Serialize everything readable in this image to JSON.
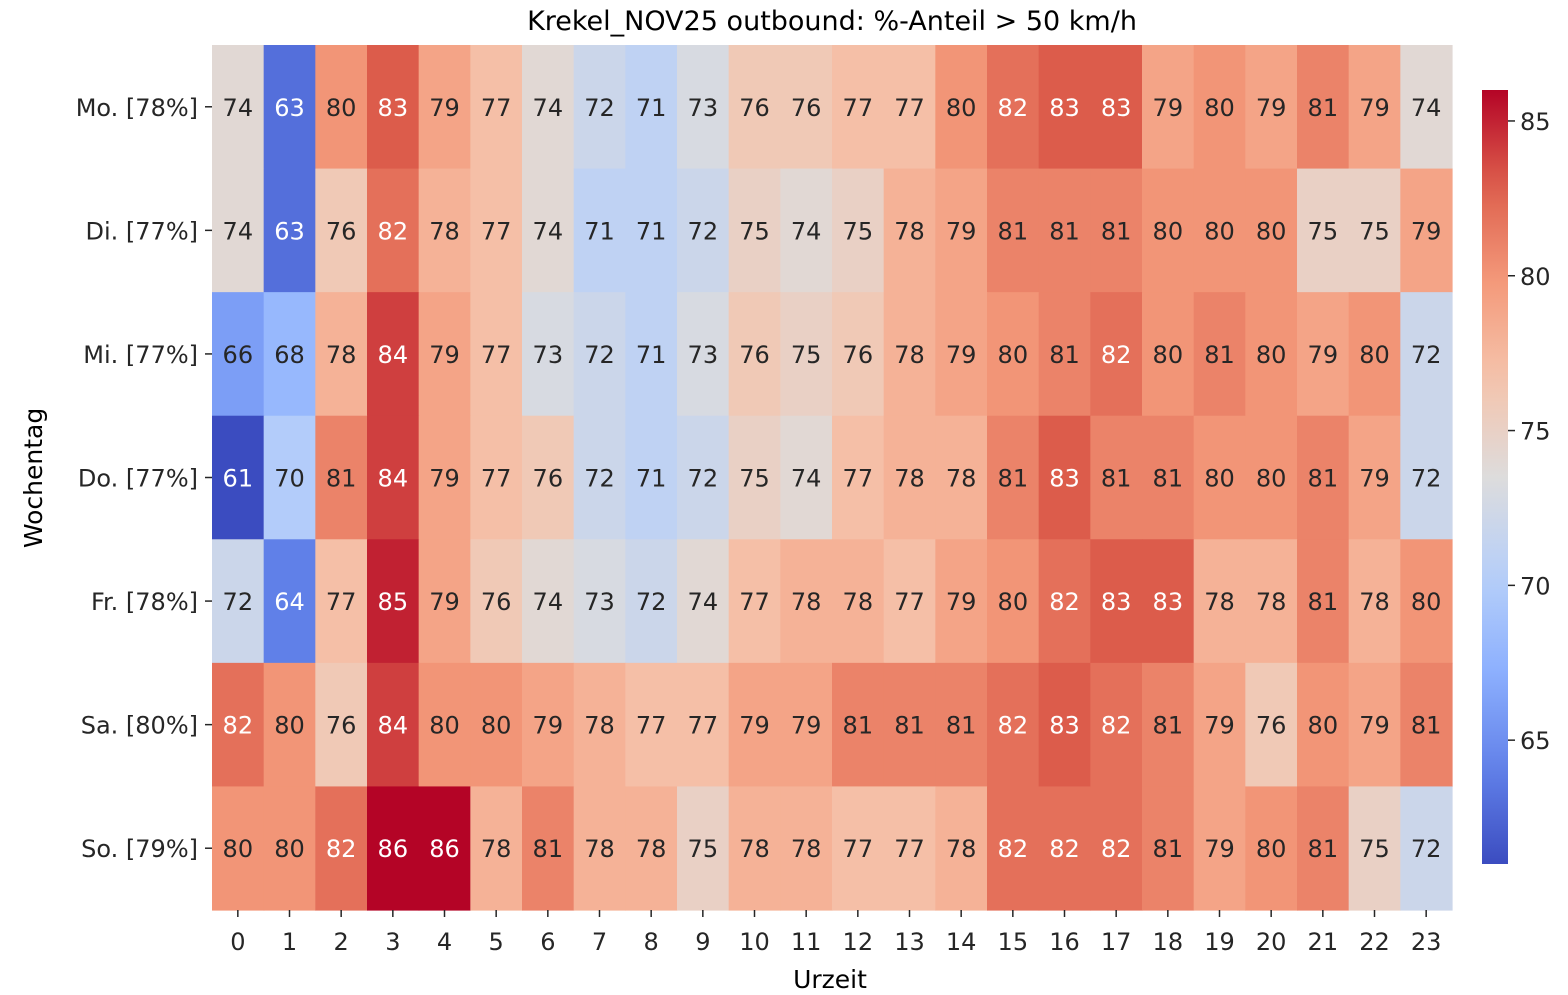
{
  "chart_data": {
    "type": "heatmap",
    "title": "Krekel_NOV25 outbound: %-Anteil > 50 km/h",
    "xlabel": "Urzeit",
    "ylabel": "Wochentag",
    "x_categories": [
      "0",
      "1",
      "2",
      "3",
      "4",
      "5",
      "6",
      "7",
      "8",
      "9",
      "10",
      "11",
      "12",
      "13",
      "14",
      "15",
      "16",
      "17",
      "18",
      "19",
      "20",
      "21",
      "22",
      "23"
    ],
    "y_categories": [
      "Mo. [78%]",
      "Di. [77%]",
      "Mi. [77%]",
      "Do. [77%]",
      "Fr. [78%]",
      "Sa. [80%]",
      "So. [79%]"
    ],
    "values": [
      [
        74,
        63,
        80,
        83,
        79,
        77,
        74,
        72,
        71,
        73,
        76,
        76,
        77,
        77,
        80,
        82,
        83,
        83,
        79,
        80,
        79,
        81,
        79,
        74
      ],
      [
        74,
        63,
        76,
        82,
        78,
        77,
        74,
        71,
        71,
        72,
        75,
        74,
        75,
        78,
        79,
        81,
        81,
        81,
        80,
        80,
        80,
        75,
        75,
        79
      ],
      [
        66,
        68,
        78,
        84,
        79,
        77,
        73,
        72,
        71,
        73,
        76,
        75,
        76,
        78,
        79,
        80,
        81,
        82,
        80,
        81,
        80,
        79,
        80,
        72
      ],
      [
        61,
        70,
        81,
        84,
        79,
        77,
        76,
        72,
        71,
        72,
        75,
        74,
        77,
        78,
        78,
        81,
        83,
        81,
        81,
        80,
        80,
        81,
        79,
        72
      ],
      [
        72,
        64,
        77,
        85,
        79,
        76,
        74,
        73,
        72,
        74,
        77,
        78,
        78,
        77,
        79,
        80,
        82,
        83,
        83,
        78,
        78,
        81,
        78,
        80
      ],
      [
        82,
        80,
        76,
        84,
        80,
        80,
        79,
        78,
        77,
        77,
        79,
        79,
        81,
        81,
        81,
        82,
        83,
        82,
        81,
        79,
        76,
        80,
        79,
        81
      ],
      [
        80,
        80,
        82,
        86,
        86,
        78,
        81,
        78,
        78,
        75,
        78,
        78,
        77,
        77,
        78,
        82,
        82,
        82,
        81,
        79,
        80,
        81,
        75,
        72
      ]
    ],
    "colormap": "coolwarm",
    "vmin": 61,
    "vmax": 86,
    "colorbar_ticks": [
      65,
      70,
      75,
      80,
      85
    ],
    "colors": {
      "low": "#3b4cc0",
      "mid": "#dddcdc",
      "high": "#b40426"
    }
  }
}
